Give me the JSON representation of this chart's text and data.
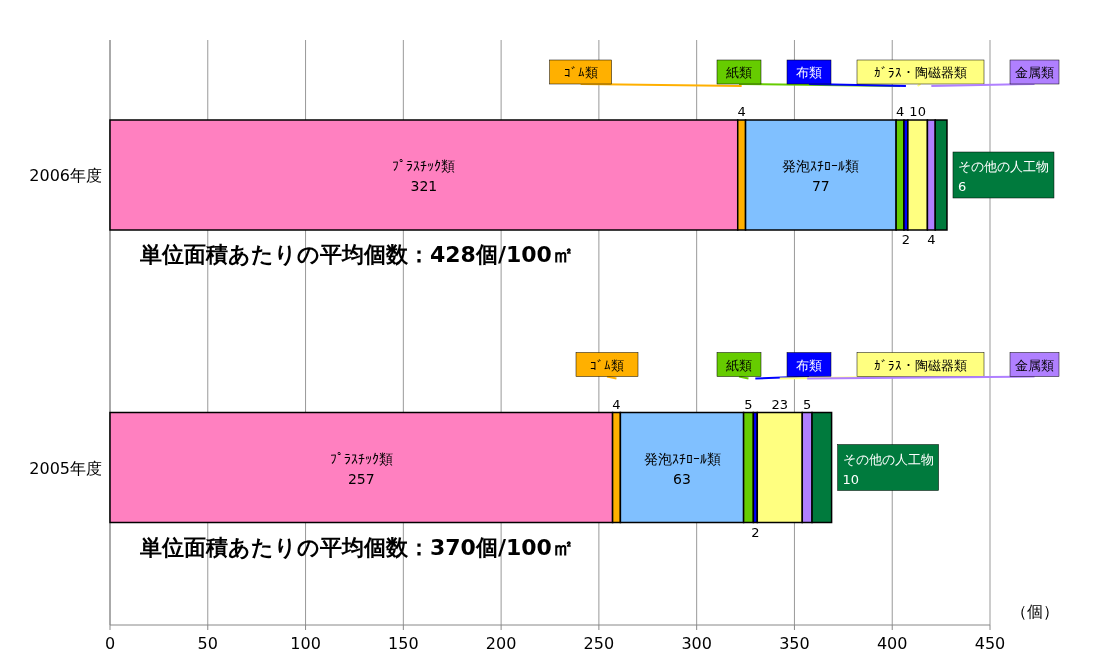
{
  "chart_data": {
    "type": "bar",
    "orientation": "horizontal",
    "stacked": true,
    "data_labels": true,
    "grid": "x",
    "categories": [
      "2006年度",
      "2005年度"
    ],
    "xlabel": "（個）",
    "xlim": [
      0,
      450
    ],
    "xticks": [
      0,
      50,
      100,
      150,
      200,
      250,
      300,
      350,
      400,
      450
    ],
    "series": [
      {
        "name": "ﾌﾟﾗｽﾁｯｸ類",
        "color": "#ff80c0",
        "values": [
          321,
          257
        ]
      },
      {
        "name": "ｺﾞﾑ類",
        "color": "#ffb000",
        "values": [
          4,
          4
        ]
      },
      {
        "name": "発泡ｽﾁﾛｰﾙ類",
        "color": "#80c0ff",
        "values": [
          77,
          63
        ]
      },
      {
        "name": "紙類",
        "color": "#66cc00",
        "values": [
          4,
          5
        ]
      },
      {
        "name": "布類",
        "color": "#0000ff",
        "values": [
          2,
          2
        ]
      },
      {
        "name": "ｶﾞﾗｽ・陶磁器類",
        "color": "#ffff80",
        "values": [
          10,
          23
        ]
      },
      {
        "name": "金属類",
        "color": "#b080ff",
        "values": [
          4,
          5
        ]
      },
      {
        "name": "その他の人工物",
        "color": "#007a3d",
        "values": [
          6,
          10
        ]
      }
    ],
    "annotations": [
      "単位面積あたりの平均個数：428個/100㎡",
      "単位面積あたりの平均個数：370個/100㎡"
    ]
  }
}
